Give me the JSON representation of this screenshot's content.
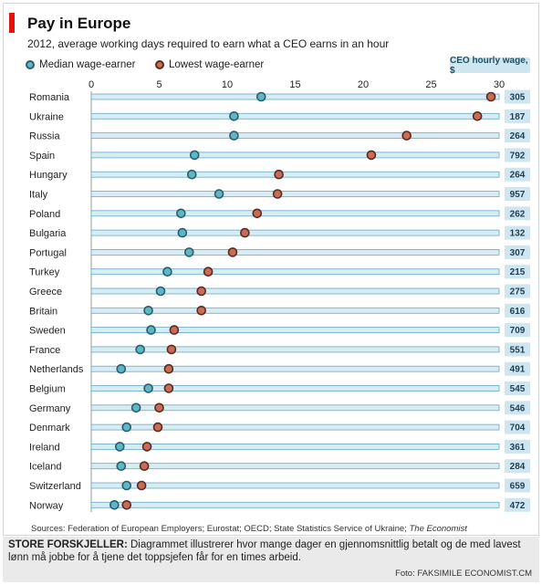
{
  "chart_data": {
    "type": "scatter",
    "title": "Pay in Europe",
    "subtitle": "2012, average working days required to earn what a CEO earns in an hour",
    "xlim": [
      0,
      30
    ],
    "x_ticks": [
      0,
      5,
      10,
      15,
      20,
      25,
      30
    ],
    "legend": {
      "placement": "top-left",
      "median_label": "Median wage-earner",
      "lowest_label": "Lowest wage-earner"
    },
    "ceo_column_label": "CEO hourly wage, $",
    "categories": [
      "Romania",
      "Ukraine",
      "Russia",
      "Spain",
      "Hungary",
      "Italy",
      "Poland",
      "Bulgaria",
      "Portugal",
      "Turkey",
      "Greece",
      "Britain",
      "Sweden",
      "France",
      "Netherlands",
      "Belgium",
      "Germany",
      "Denmark",
      "Ireland",
      "Iceland",
      "Switzerland",
      "Norway"
    ],
    "series": [
      {
        "name": "Median wage-earner",
        "color": "#5fb7c6",
        "stroke": "#2c5d6b",
        "values": [
          12.5,
          10.5,
          10.5,
          7.6,
          7.4,
          9.4,
          6.6,
          6.7,
          7.2,
          5.6,
          5.1,
          4.2,
          4.4,
          3.6,
          2.2,
          4.2,
          3.3,
          2.6,
          2.1,
          2.2,
          2.6,
          1.7
        ]
      },
      {
        "name": "Lowest wage-earner",
        "color": "#c76d57",
        "stroke": "#5b2a1f",
        "values": [
          29.4,
          28.4,
          23.2,
          20.6,
          13.8,
          13.7,
          12.2,
          11.3,
          10.4,
          8.6,
          8.1,
          8.1,
          6.1,
          5.9,
          5.7,
          5.7,
          5.0,
          4.9,
          4.1,
          3.9,
          3.7,
          2.6
        ]
      }
    ],
    "ceo_hourly_wage": [
      305,
      187,
      264,
      792,
      264,
      957,
      262,
      132,
      307,
      215,
      275,
      616,
      709,
      551,
      491,
      545,
      546,
      704,
      361,
      284,
      659,
      472
    ],
    "grid": false,
    "source_prefix": "Sources: Federation of European Employers; Eurostat; OECD; State Statistics Service of Ukraine; ",
    "source_italic": "The Economist"
  },
  "caption": {
    "head": "STORE FORSKJELLER:",
    "body": " Diagrammet illustrerer hvor mange dager en gjennomsnittlig betalt og de med lavest lønn må jobbe for å tjene det toppsjefen får for en times arbeid.",
    "credit": "Foto: FAKSIMILE ECONOMIST.CM"
  },
  "colors": {
    "accent_red": "#e3120b",
    "bar_fill": "#d8ecf4",
    "bar_stroke": "#6aa9c4",
    "ceo_box": "#cfe6f0"
  }
}
